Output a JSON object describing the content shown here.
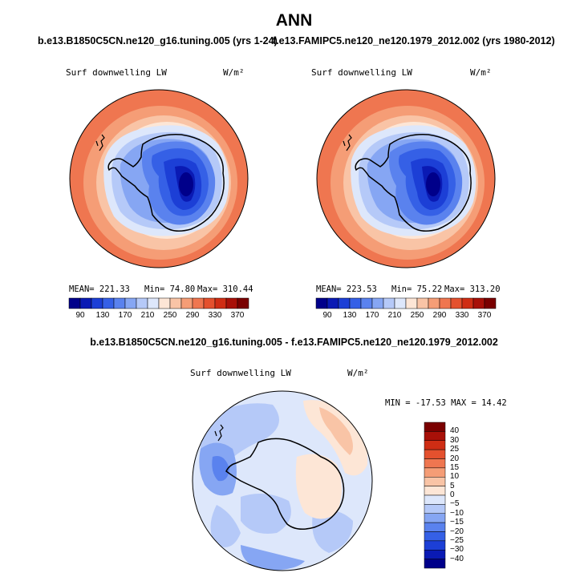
{
  "page": {
    "season": "ANN",
    "panels": [
      {
        "case_title": "b.e13.B1850C5CN.ne120_g16.tuning.005 (yrs 1-24)",
        "var_label": "Surf downwelling LW",
        "units": "W/m²",
        "mean_text": "MEAN= 221.33",
        "min_text": "Min=  74.80",
        "max_text": "Max= 310.44"
      },
      {
        "case_title": "f.e13.FAMIPC5.ne120_ne120.1979_2012.002 (yrs 1980-2012)",
        "var_label": "Surf downwelling LW",
        "units": "W/m²",
        "mean_text": "MEAN= 223.53",
        "min_text": "Min=  75.22",
        "max_text": "Max= 313.20"
      }
    ],
    "diff": {
      "title": "b.e13.B1850C5CN.ne120_g16.tuning.005 - f.e13.FAMIPC5.ne120_ne120.1979_2012.002",
      "var_label": "Surf downwelling LW",
      "units": "W/m²",
      "minmax_text": "MIN = -17.53 MAX =  14.42"
    }
  },
  "chart_data": [
    {
      "type": "heatmap",
      "projection": "south polar stereographic",
      "title": "b.e13.B1850C5CN.ne120_g16.tuning.005 (yrs 1-24)",
      "variable": "Surf downwelling LW",
      "units": "W/m2",
      "stats": {
        "mean": 221.33,
        "min": 74.8,
        "max": 310.44
      },
      "colorbar": {
        "orientation": "horizontal",
        "levels": [
          90,
          110,
          130,
          150,
          170,
          190,
          210,
          230,
          250,
          270,
          290,
          310,
          330,
          350,
          370
        ],
        "tick_labels": [
          "90",
          "130",
          "170",
          "210",
          "250",
          "290",
          "330",
          "370"
        ],
        "colors": [
          "#00008a",
          "#0a1ab4",
          "#1c3fd6",
          "#3560e6",
          "#5a82ee",
          "#86a6f3",
          "#b5c9f8",
          "#dde7fb",
          "#fde6d6",
          "#f9c4a6",
          "#f59d76",
          "#ef7650",
          "#e4512e",
          "#cf2d14",
          "#a81008",
          "#7a0000"
        ]
      }
    },
    {
      "type": "heatmap",
      "projection": "south polar stereographic",
      "title": "f.e13.FAMIPC5.ne120_ne120.1979_2012.002 (yrs 1980-2012)",
      "variable": "Surf downwelling LW",
      "units": "W/m2",
      "stats": {
        "mean": 223.53,
        "min": 75.22,
        "max": 313.2
      },
      "colorbar": {
        "orientation": "horizontal",
        "levels": [
          90,
          110,
          130,
          150,
          170,
          190,
          210,
          230,
          250,
          270,
          290,
          310,
          330,
          350,
          370
        ],
        "tick_labels": [
          "90",
          "130",
          "170",
          "210",
          "250",
          "290",
          "330",
          "370"
        ],
        "colors": [
          "#00008a",
          "#0a1ab4",
          "#1c3fd6",
          "#3560e6",
          "#5a82ee",
          "#86a6f3",
          "#b5c9f8",
          "#dde7fb",
          "#fde6d6",
          "#f9c4a6",
          "#f59d76",
          "#ef7650",
          "#e4512e",
          "#cf2d14",
          "#a81008",
          "#7a0000"
        ]
      }
    },
    {
      "type": "heatmap",
      "projection": "south polar stereographic",
      "title": "b.e13.B1850C5CN.ne120_g16.tuning.005 - f.e13.FAMIPC5.ne120_ne120.1979_2012.002",
      "variable": "Surf downwelling LW",
      "units": "W/m2",
      "stats": {
        "min": -17.53,
        "max": 14.42
      },
      "colorbar": {
        "orientation": "vertical",
        "levels": [
          -40,
          -30,
          -25,
          -20,
          -15,
          -10,
          -5,
          0,
          5,
          10,
          15,
          20,
          25,
          30,
          40
        ],
        "tick_labels": [
          "40",
          "30",
          "25",
          "20",
          "15",
          "10",
          "5",
          "0",
          "−5",
          "−10",
          "−15",
          "−20",
          "−25",
          "−30",
          "−40"
        ],
        "colors": [
          "#7a0000",
          "#a81008",
          "#cf2d14",
          "#e4512e",
          "#ef7650",
          "#f59d76",
          "#f9c4a6",
          "#fde6d6",
          "#dde7fb",
          "#b5c9f8",
          "#86a6f3",
          "#5a82ee",
          "#3560e6",
          "#1c3fd6",
          "#0a1ab4",
          "#00008a"
        ]
      }
    }
  ]
}
